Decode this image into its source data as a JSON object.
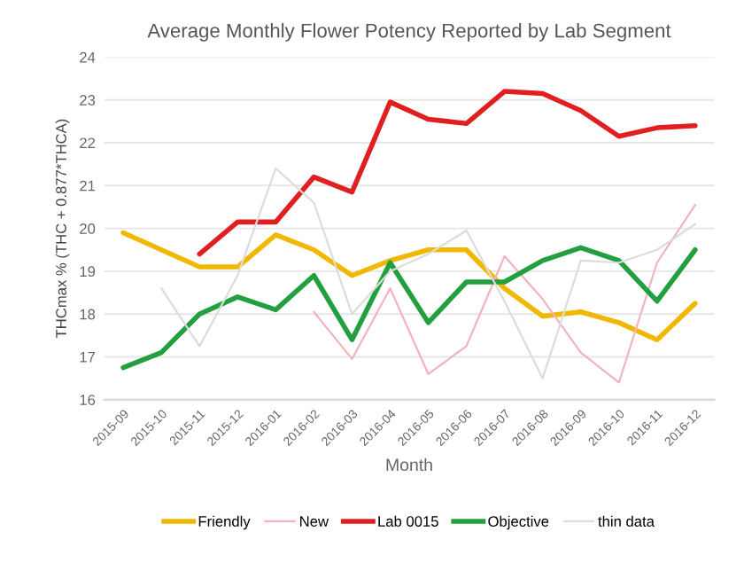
{
  "chart_data": {
    "type": "line",
    "title": "Average Monthly Flower Potency Reported by Lab Segment",
    "xlabel": "Month",
    "ylabel": "THCmax % (THC + 0.877*THCA)",
    "categories": [
      "2015-09",
      "2015-10",
      "2015-11",
      "2015-12",
      "2016-01",
      "2016-02",
      "2016-03",
      "2016-04",
      "2016-05",
      "2016-06",
      "2016-07",
      "2016-08",
      "2016-09",
      "2016-10",
      "2016-11",
      "2016-12"
    ],
    "series": [
      {
        "name": "Friendly",
        "color": "#f0b800",
        "values": [
          19.9,
          19.5,
          19.1,
          19.1,
          19.85,
          19.5,
          18.9,
          19.25,
          19.5,
          19.5,
          18.6,
          17.95,
          18.05,
          17.8,
          17.4,
          18.25
        ]
      },
      {
        "name": "New",
        "color": "#f2b3bf",
        "values": [
          null,
          null,
          null,
          null,
          null,
          18.05,
          16.95,
          18.6,
          16.6,
          17.25,
          19.35,
          18.35,
          17.1,
          16.4,
          19.2,
          20.55
        ]
      },
      {
        "name": "Lab 0015",
        "color": "#e02020",
        "values": [
          null,
          null,
          19.4,
          20.15,
          20.15,
          21.2,
          20.85,
          22.95,
          22.55,
          22.45,
          23.2,
          23.15,
          22.75,
          22.15,
          22.35,
          22.4
        ]
      },
      {
        "name": "Objective",
        "color": "#22a040",
        "values": [
          16.75,
          17.1,
          18.0,
          18.4,
          18.1,
          18.9,
          17.4,
          19.2,
          17.8,
          18.75,
          18.75,
          19.25,
          19.55,
          19.25,
          18.3,
          19.5
        ]
      },
      {
        "name": "thin data",
        "color": "#dcdcdc",
        "values": [
          null,
          18.6,
          17.25,
          18.9,
          21.4,
          20.6,
          18.0,
          19.0,
          19.4,
          19.95,
          18.3,
          16.5,
          19.25,
          19.2,
          19.5,
          20.1
        ]
      }
    ],
    "ylim": [
      16,
      24
    ],
    "yticks": [
      16,
      17,
      18,
      19,
      20,
      21,
      22,
      23,
      24
    ],
    "grid": "y",
    "legend": "bottom",
    "marker": "none",
    "line_style": "solid"
  }
}
